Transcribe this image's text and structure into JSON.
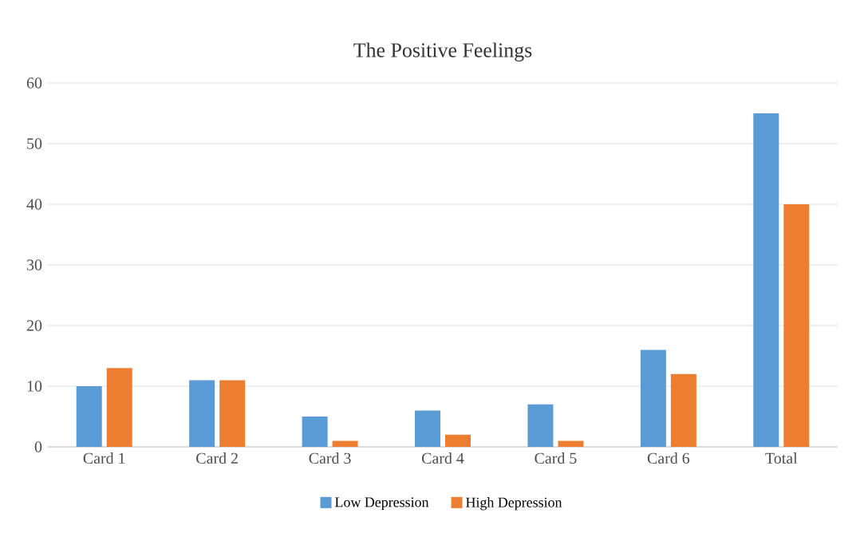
{
  "chart_data": {
    "type": "bar",
    "title": "The Positive Feelings",
    "categories": [
      "Card 1",
      "Card 2",
      "Card 3",
      "Card 4",
      "Card 5",
      "Card 6",
      "Total"
    ],
    "series": [
      {
        "name": "Low Depression",
        "color": "#5b9bd5",
        "values": [
          10,
          11,
          5,
          6,
          7,
          16,
          55
        ]
      },
      {
        "name": "High Depression",
        "color": "#ed7d31",
        "values": [
          13,
          11,
          1,
          2,
          1,
          12,
          40
        ]
      }
    ],
    "ylim": [
      0,
      60
    ],
    "yticks": [
      0,
      10,
      20,
      30,
      40,
      50,
      60
    ],
    "grid": "y",
    "legend": "bottom"
  }
}
